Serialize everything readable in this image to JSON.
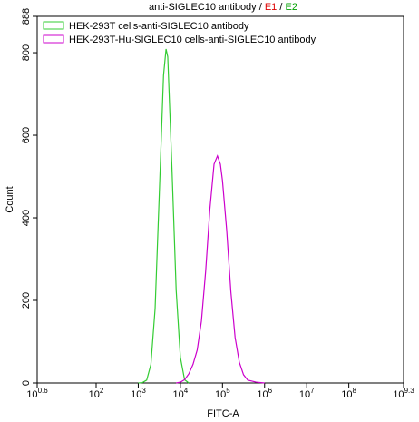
{
  "chart_data": {
    "type": "line",
    "title_parts": [
      {
        "text": "anti-SIGLEC10 antibody / ",
        "color": "#000000"
      },
      {
        "text": "E1",
        "color": "#dd0000"
      },
      {
        "text": " / ",
        "color": "#000000"
      },
      {
        "text": "E2",
        "color": "#00a000"
      }
    ],
    "xlabel": "FITC-A",
    "ylabel": "Count",
    "xscale": "log",
    "xlim": [
      3.981,
      1995262315
    ],
    "ylim": [
      0,
      888
    ],
    "xticks": [
      {
        "value": 3.981,
        "label": "10",
        "exponent": "0.6"
      },
      {
        "value": 100,
        "label": "10",
        "exponent": "2"
      },
      {
        "value": 1000,
        "label": "10",
        "exponent": "3"
      },
      {
        "value": 10000,
        "label": "10",
        "exponent": "4"
      },
      {
        "value": 100000,
        "label": "10",
        "exponent": "5"
      },
      {
        "value": 1000000,
        "label": "10",
        "exponent": "6"
      },
      {
        "value": 10000000,
        "label": "10",
        "exponent": "7"
      },
      {
        "value": 100000000,
        "label": "10",
        "exponent": "8"
      },
      {
        "value": 1995262315,
        "label": "10",
        "exponent": "9.3"
      }
    ],
    "yticks": [
      0,
      200,
      400,
      600,
      800,
      888
    ],
    "legend": "upper left",
    "series": [
      {
        "name": "HEK-293T cells-anti-SIGLEC10 antibody",
        "color": "#33cc33",
        "x": [
          1000,
          1259,
          1585,
          1995,
          2512,
          3162,
          3981,
          4571,
          5012,
          6310,
          7943,
          10000,
          12589,
          15849
        ],
        "values": [
          0,
          1,
          7,
          45,
          180,
          460,
          745,
          809,
          790,
          520,
          225,
          62,
          8,
          0
        ]
      },
      {
        "name": "HEK-293T-Hu-SIGLEC10 cells-anti-SIGLEC10 antibody",
        "color": "#cc00cc",
        "x": [
          7943,
          10000,
          12589,
          15849,
          19953,
          25119,
          31623,
          39811,
          50119,
          63096,
          75858,
          89125,
          100000,
          125893,
          158489,
          199526,
          251189,
          316228,
          398107,
          630957,
          1000000
        ],
        "values": [
          0,
          2,
          8,
          22,
          45,
          80,
          150,
          270,
          420,
          530,
          550,
          530,
          490,
          370,
          220,
          110,
          50,
          20,
          7,
          2,
          0
        ]
      }
    ]
  }
}
